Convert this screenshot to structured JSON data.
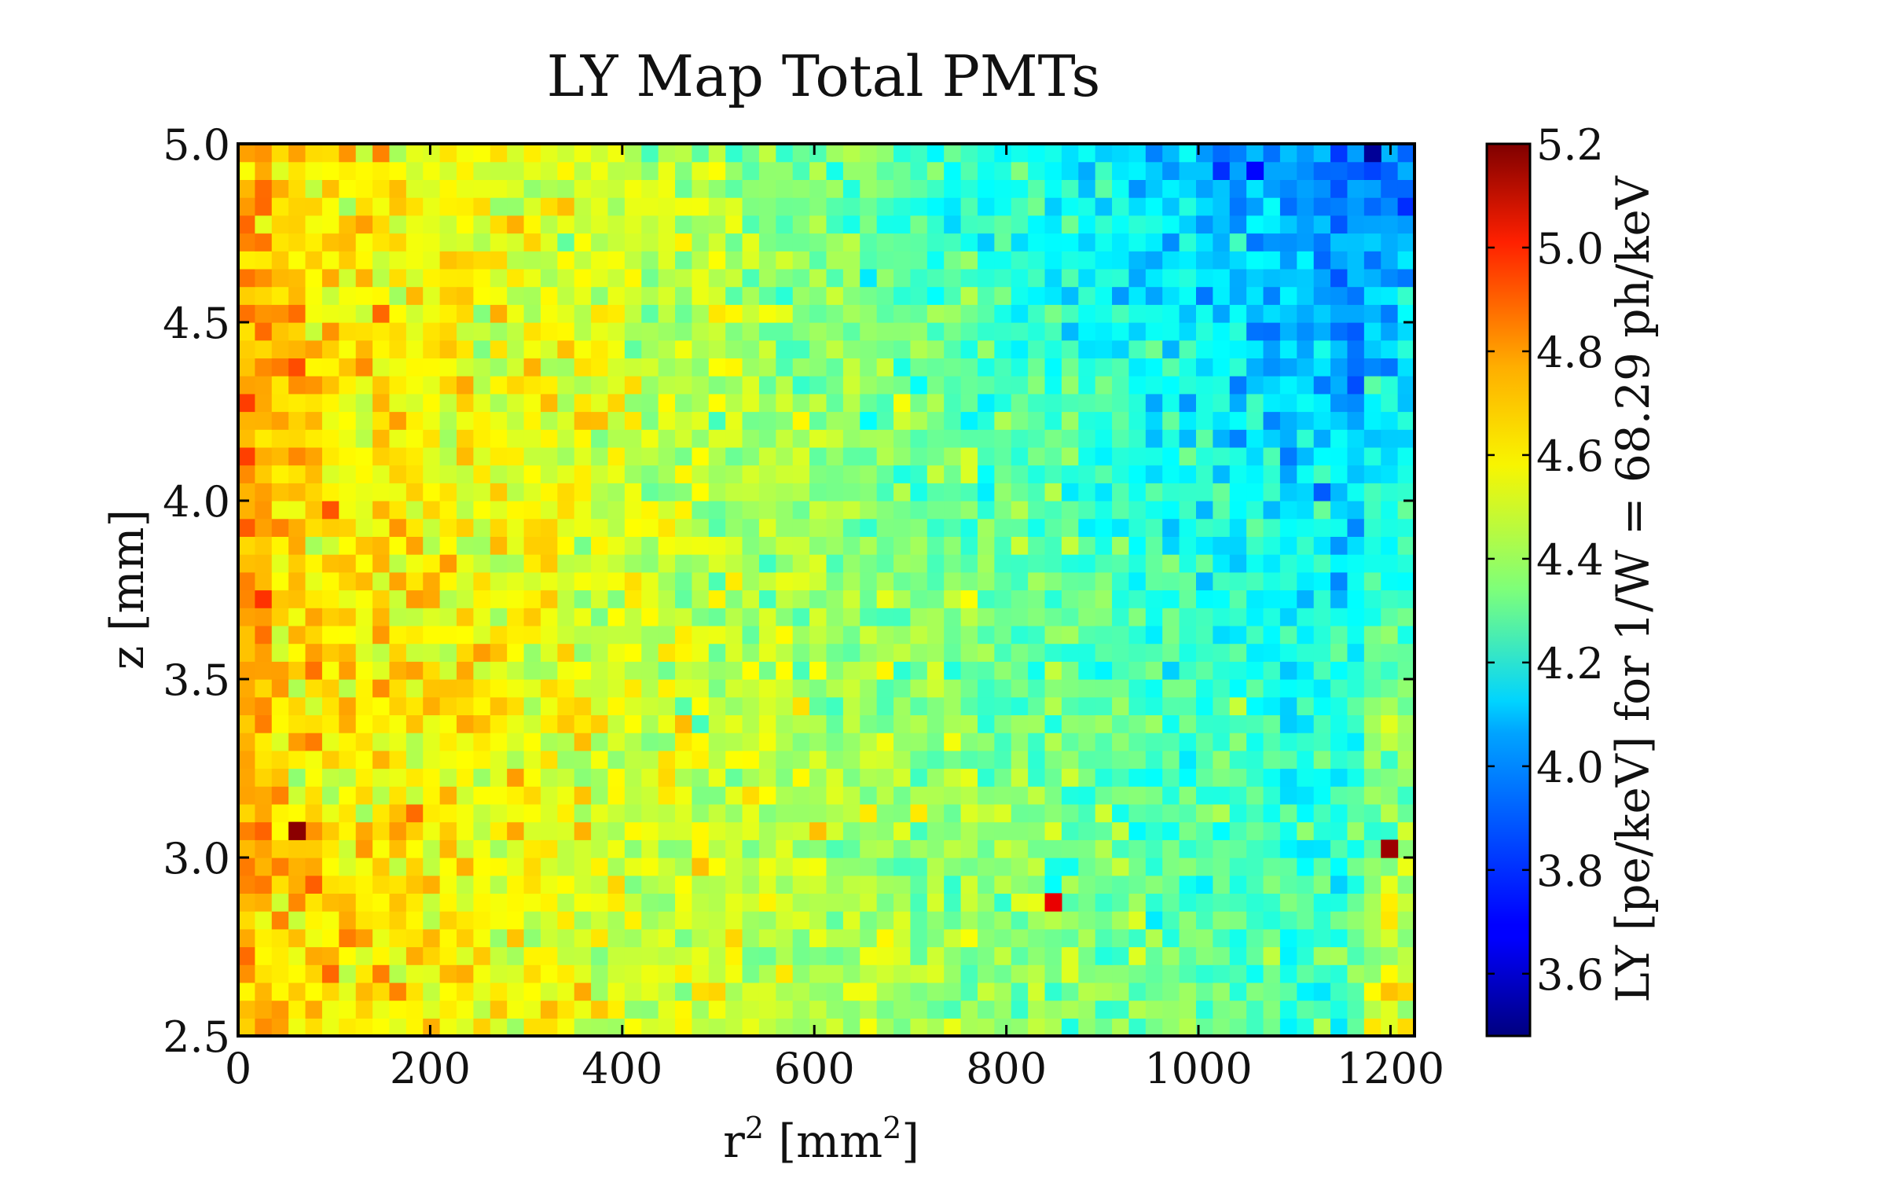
{
  "chart_data": {
    "type": "heatmap",
    "title": "LY Map Total PMTs",
    "xlabel": {
      "base": "r",
      "exp": "2",
      "unit_pre": " [mm",
      "unit_exp": "2",
      "unit_post": "]"
    },
    "ylabel": "z [mm]",
    "colorbar_label": "LY [pe/keV] for 1/W = 68.29 ph/keV",
    "xlim": [
      0,
      1225
    ],
    "ylim": [
      2.5,
      5.0
    ],
    "x_ticks": [
      "0",
      "200",
      "400",
      "600",
      "800",
      "1000",
      "1200"
    ],
    "x_tick_values": [
      0,
      200,
      400,
      600,
      800,
      1000,
      1200
    ],
    "y_ticks": [
      "2.5",
      "3.0",
      "3.5",
      "4.0",
      "4.5",
      "5.0"
    ],
    "y_tick_values": [
      2.5,
      3.0,
      3.5,
      4.0,
      4.5,
      5.0
    ],
    "colorbar_range": [
      3.48,
      5.2
    ],
    "colorbar_ticks": [
      "3.6",
      "3.8",
      "4.0",
      "4.2",
      "4.4",
      "4.6",
      "4.8",
      "5.0",
      "5.2"
    ],
    "colorbar_tick_values": [
      3.6,
      3.8,
      4.0,
      4.2,
      4.4,
      4.6,
      4.8,
      5.0,
      5.2
    ],
    "colormap": "jet",
    "grid": false,
    "bins_x": 70,
    "bins_y": 50,
    "value_model": "LY decreases from about 4.65 pe/keV at small r^2 to about 3.8 pe/keV at large r^2 and high z, per-bin noise of about 0.15",
    "notable_cells": [
      {
        "x": 60,
        "y": 3.08,
        "value": 5.18
      },
      {
        "x": 1190,
        "y": 3.02,
        "value": 5.15
      },
      {
        "x": 850,
        "y": 2.85,
        "value": 5.02
      },
      {
        "x": 1180,
        "y": 4.98,
        "value": 3.52
      },
      {
        "x": 1060,
        "y": 4.92,
        "value": 3.7
      }
    ]
  }
}
